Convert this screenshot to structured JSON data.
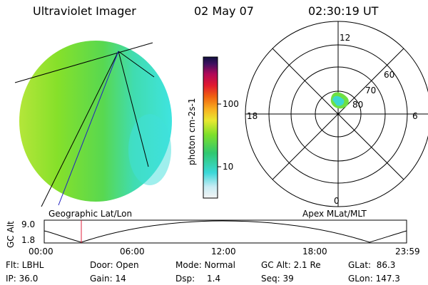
{
  "header": {
    "title": "Ultraviolet Imager",
    "date": "02 May 07",
    "time": "02:30:19 UT"
  },
  "colorbar": {
    "unit_label": "photon cm-2s-1",
    "ticks": [
      "100",
      "10"
    ]
  },
  "left_panel": {
    "caption": "Geographic Lat/Lon"
  },
  "right_panel": {
    "caption": "Apex MLat/MLT",
    "mlt_labels": {
      "top": "12",
      "left": "18",
      "right": "6",
      "bottom": "0"
    },
    "mlat_labels": [
      "60",
      "70",
      "80"
    ]
  },
  "timeline": {
    "ylabel": "GC Alt",
    "y_ticks": [
      "9.0",
      "1.8"
    ],
    "x_ticks": [
      "00:00",
      "06:00",
      "12:00",
      "18:00",
      "23:59"
    ],
    "marker_time": "02:30:19"
  },
  "status": {
    "row1": {
      "flt": "Flt: LBHL",
      "door": "Door: Open",
      "mode": "Mode: Normal",
      "gc_alt": "GC Alt: 2.1 Re",
      "glat": "GLat:  86.3"
    },
    "row2": {
      "ip": "IP: 36.0",
      "gain": "Gain: 14",
      "dsp_label": "Dsp:",
      "dsp_value": "1.4",
      "seq": "Seq: 39",
      "glon": "GLon: 147.3"
    }
  },
  "colors": {
    "disk_left": "#7ee02a",
    "disk_mid": "#3ed06a",
    "disk_right": "#3fdcdc",
    "marker": "#e0203c",
    "projection_line": "#2020c0"
  }
}
